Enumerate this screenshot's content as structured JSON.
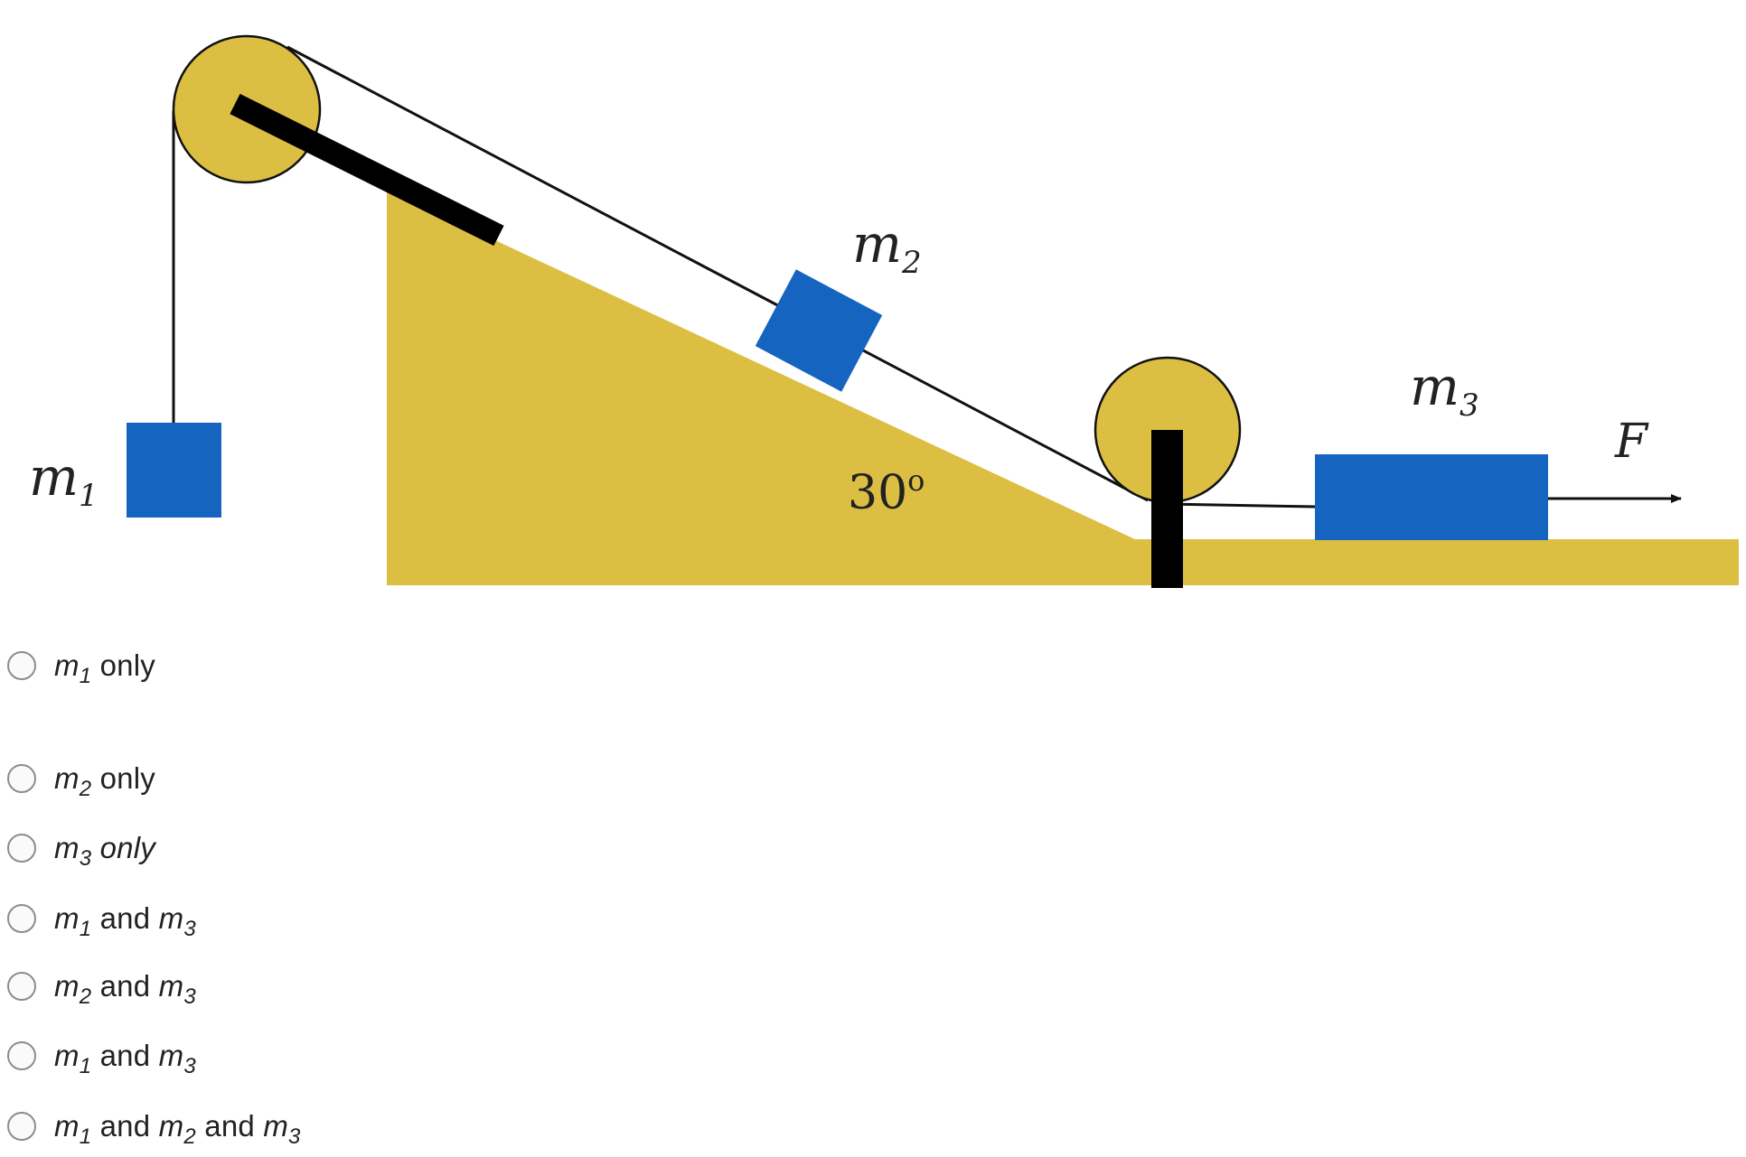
{
  "diagram": {
    "labels": {
      "m1": "m",
      "m1_sub": "1",
      "m2": "m",
      "m2_sub": "2",
      "m3": "m",
      "m3_sub": "3",
      "angle": "30",
      "angle_sup": "o",
      "force": "F"
    },
    "colors": {
      "ramp": "#dcbf42",
      "block": "#1565c0",
      "pulley": "#dcbf42",
      "rod": "#000000",
      "rope": "#111111"
    }
  },
  "choices": [
    {
      "parts": [
        {
          "i": "m",
          "s": "1"
        },
        {
          "t": " only"
        }
      ]
    },
    {
      "parts": [
        {
          "i": "m",
          "s": "2"
        },
        {
          "t": " only"
        }
      ]
    },
    {
      "parts": [
        {
          "i": "m",
          "s": "3"
        },
        {
          "it": " only"
        }
      ]
    },
    {
      "parts": [
        {
          "i": "m",
          "s": "1"
        },
        {
          "t": " and "
        },
        {
          "i": "m",
          "s": "3"
        }
      ]
    },
    {
      "parts": [
        {
          "i": "m",
          "s": "2"
        },
        {
          "t": " and "
        },
        {
          "i": "m",
          "s": "3"
        }
      ]
    },
    {
      "parts": [
        {
          "i": "m",
          "s": "1"
        },
        {
          "t": " and "
        },
        {
          "i": "m",
          "s": "3"
        }
      ]
    },
    {
      "parts": [
        {
          "i": "m",
          "s": "1"
        },
        {
          "t": " and "
        },
        {
          "i": "m",
          "s": "2"
        },
        {
          "t": " and "
        },
        {
          "i": "m",
          "s": "3"
        }
      ]
    }
  ]
}
